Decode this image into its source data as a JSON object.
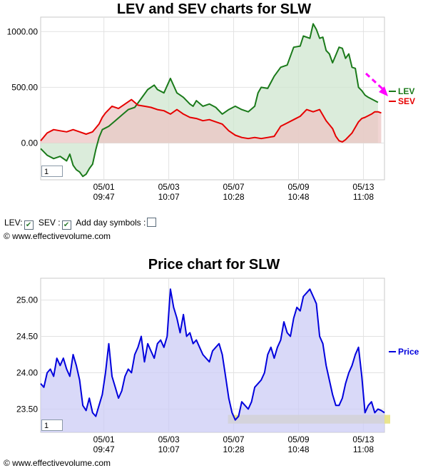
{
  "page": {
    "copyright": "© www.effectivevolume.com"
  },
  "controls": {
    "lev_label": "LEV:",
    "sev_label": "SEV :",
    "day_symbols_label": "Add day symbols :",
    "lev_checked": true,
    "sev_checked": true,
    "day_symbols_checked": false
  },
  "chart_data": [
    {
      "type": "area",
      "title": "LEV and SEV charts for SLW",
      "zoom_value": "1",
      "ylim": [
        -330,
        1130
      ],
      "y_ticks": [
        0,
        500,
        1000
      ],
      "y_tick_labels": [
        "0.00",
        "500.00",
        "1000.00"
      ],
      "x_ticks": [
        {
          "date": "05/01",
          "time": "09:47"
        },
        {
          "date": "05/03",
          "time": "10:07"
        },
        {
          "date": "05/07",
          "time": "10:28"
        },
        {
          "date": "05/09",
          "time": "10:48"
        },
        {
          "date": "05/13",
          "time": "11:08"
        }
      ],
      "x_tick_positions": [
        19.5,
        39.5,
        59.5,
        79.5,
        99.5
      ],
      "x_range": [
        0,
        106
      ],
      "grid": true,
      "legend": "right",
      "series": [
        {
          "name": "LEV",
          "color": "#1a7a1a",
          "fill": "#cfe6cf",
          "points": [
            [
              0,
              -50
            ],
            [
              2,
              -110
            ],
            [
              4,
              -140
            ],
            [
              6,
              -120
            ],
            [
              8,
              -160
            ],
            [
              9,
              -100
            ],
            [
              10,
              -200
            ],
            [
              11,
              -240
            ],
            [
              12,
              -260
            ],
            [
              13,
              -300
            ],
            [
              14,
              -280
            ],
            [
              15,
              -230
            ],
            [
              16,
              -190
            ],
            [
              17,
              -60
            ],
            [
              18,
              50
            ],
            [
              19,
              120
            ],
            [
              21,
              150
            ],
            [
              23,
              200
            ],
            [
              25,
              250
            ],
            [
              27,
              300
            ],
            [
              29,
              320
            ],
            [
              31,
              400
            ],
            [
              33,
              480
            ],
            [
              35,
              520
            ],
            [
              36,
              480
            ],
            [
              38,
              450
            ],
            [
              40,
              580
            ],
            [
              42,
              450
            ],
            [
              44,
              410
            ],
            [
              46,
              350
            ],
            [
              47,
              330
            ],
            [
              48,
              380
            ],
            [
              50,
              330
            ],
            [
              52,
              350
            ],
            [
              54,
              320
            ],
            [
              56,
              260
            ],
            [
              58,
              300
            ],
            [
              60,
              330
            ],
            [
              62,
              300
            ],
            [
              64,
              280
            ],
            [
              66,
              330
            ],
            [
              67,
              450
            ],
            [
              68,
              500
            ],
            [
              70,
              490
            ],
            [
              72,
              600
            ],
            [
              74,
              680
            ],
            [
              76,
              700
            ],
            [
              78,
              860
            ],
            [
              80,
              870
            ],
            [
              81,
              960
            ],
            [
              83,
              940
            ],
            [
              84,
              1070
            ],
            [
              85,
              1020
            ],
            [
              86,
              940
            ],
            [
              87,
              950
            ],
            [
              88,
              830
            ],
            [
              89,
              800
            ],
            [
              90,
              720
            ],
            [
              91,
              790
            ],
            [
              92,
              860
            ],
            [
              93,
              850
            ],
            [
              94,
              760
            ],
            [
              95,
              800
            ],
            [
              96,
              680
            ],
            [
              97,
              670
            ],
            [
              98,
              500
            ],
            [
              99,
              470
            ],
            [
              100,
              430
            ],
            [
              101,
              410
            ],
            [
              103,
              380
            ],
            [
              104,
              365
            ]
          ]
        },
        {
          "name": "SEV",
          "color": "#e60000",
          "fill": "#ecc6c4",
          "points": [
            [
              0,
              20
            ],
            [
              2,
              90
            ],
            [
              4,
              120
            ],
            [
              6,
              110
            ],
            [
              8,
              100
            ],
            [
              10,
              120
            ],
            [
              12,
              100
            ],
            [
              14,
              80
            ],
            [
              16,
              100
            ],
            [
              18,
              170
            ],
            [
              19,
              230
            ],
            [
              20,
              270
            ],
            [
              22,
              330
            ],
            [
              24,
              310
            ],
            [
              26,
              350
            ],
            [
              28,
              390
            ],
            [
              30,
              340
            ],
            [
              32,
              330
            ],
            [
              34,
              320
            ],
            [
              36,
              300
            ],
            [
              38,
              290
            ],
            [
              40,
              260
            ],
            [
              42,
              300
            ],
            [
              44,
              260
            ],
            [
              46,
              230
            ],
            [
              48,
              220
            ],
            [
              50,
              200
            ],
            [
              52,
              210
            ],
            [
              54,
              190
            ],
            [
              56,
              170
            ],
            [
              58,
              110
            ],
            [
              60,
              70
            ],
            [
              62,
              50
            ],
            [
              64,
              40
            ],
            [
              66,
              50
            ],
            [
              68,
              40
            ],
            [
              70,
              50
            ],
            [
              72,
              60
            ],
            [
              74,
              150
            ],
            [
              76,
              180
            ],
            [
              78,
              210
            ],
            [
              80,
              240
            ],
            [
              82,
              300
            ],
            [
              84,
              280
            ],
            [
              86,
              300
            ],
            [
              88,
              200
            ],
            [
              90,
              130
            ],
            [
              91,
              60
            ],
            [
              92,
              20
            ],
            [
              93,
              10
            ],
            [
              94,
              30
            ],
            [
              96,
              90
            ],
            [
              98,
              190
            ],
            [
              99,
              220
            ],
            [
              100,
              230
            ],
            [
              102,
              260
            ],
            [
              103,
              280
            ],
            [
              104,
              280
            ],
            [
              105,
              270
            ]
          ]
        }
      ],
      "arrow_color": "#ff00ff"
    },
    {
      "type": "area",
      "title": "Price chart for SLW",
      "zoom_value": "1",
      "ylim": [
        23.18,
        25.3
      ],
      "y_ticks": [
        23.5,
        24.0,
        24.5,
        25.0
      ],
      "y_tick_labels": [
        "23.50",
        "24.00",
        "24.50",
        "25.00"
      ],
      "x_ticks": [
        {
          "date": "05/01",
          "time": "09:47"
        },
        {
          "date": "05/03",
          "time": "10:07"
        },
        {
          "date": "05/07",
          "time": "10:28"
        },
        {
          "date": "05/09",
          "time": "10:48"
        },
        {
          "date": "05/13",
          "time": "11:08"
        }
      ],
      "x_tick_positions": [
        19.5,
        39.5,
        59.5,
        79.5,
        99.5
      ],
      "x_range": [
        0,
        106
      ],
      "grid": true,
      "legend": "right",
      "highlight_band": [
        23.3,
        23.42
      ],
      "highlight_color": "#e6e07a",
      "series": [
        {
          "name": "Price",
          "color": "#0000dd",
          "fill": "#ccccf5",
          "points": [
            [
              0,
              23.85
            ],
            [
              1,
              23.8
            ],
            [
              2,
              24.0
            ],
            [
              3,
              24.05
            ],
            [
              4,
              23.95
            ],
            [
              5,
              24.2
            ],
            [
              6,
              24.1
            ],
            [
              7,
              24.2
            ],
            [
              8,
              24.05
            ],
            [
              9,
              23.95
            ],
            [
              10,
              24.25
            ],
            [
              11,
              24.1
            ],
            [
              12,
              23.9
            ],
            [
              13,
              23.55
            ],
            [
              14,
              23.48
            ],
            [
              15,
              23.65
            ],
            [
              16,
              23.45
            ],
            [
              17,
              23.4
            ],
            [
              18,
              23.55
            ],
            [
              19,
              23.7
            ],
            [
              20,
              24.0
            ],
            [
              21,
              24.4
            ],
            [
              22,
              23.95
            ],
            [
              23,
              23.8
            ],
            [
              24,
              23.65
            ],
            [
              25,
              23.75
            ],
            [
              26,
              23.95
            ],
            [
              27,
              24.05
            ],
            [
              28,
              24.0
            ],
            [
              29,
              24.25
            ],
            [
              30,
              24.35
            ],
            [
              31,
              24.5
            ],
            [
              32,
              24.15
            ],
            [
              33,
              24.4
            ],
            [
              34,
              24.3
            ],
            [
              35,
              24.2
            ],
            [
              36,
              24.4
            ],
            [
              37,
              24.45
            ],
            [
              38,
              24.35
            ],
            [
              39,
              24.5
            ],
            [
              40,
              25.15
            ],
            [
              41,
              24.9
            ],
            [
              42,
              24.75
            ],
            [
              43,
              24.55
            ],
            [
              44,
              24.8
            ],
            [
              45,
              24.5
            ],
            [
              46,
              24.55
            ],
            [
              47,
              24.4
            ],
            [
              48,
              24.45
            ],
            [
              49,
              24.35
            ],
            [
              50,
              24.25
            ],
            [
              51,
              24.2
            ],
            [
              52,
              24.15
            ],
            [
              53,
              24.3
            ],
            [
              54,
              24.35
            ],
            [
              55,
              24.4
            ],
            [
              56,
              24.25
            ],
            [
              57,
              23.95
            ],
            [
              58,
              23.65
            ],
            [
              59,
              23.45
            ],
            [
              60,
              23.35
            ],
            [
              61,
              23.4
            ],
            [
              62,
              23.6
            ],
            [
              63,
              23.55
            ],
            [
              64,
              23.5
            ],
            [
              65,
              23.6
            ],
            [
              66,
              23.8
            ],
            [
              67,
              23.85
            ],
            [
              68,
              23.9
            ],
            [
              69,
              24.0
            ],
            [
              70,
              24.25
            ],
            [
              71,
              24.35
            ],
            [
              72,
              24.2
            ],
            [
              73,
              24.35
            ],
            [
              74,
              24.45
            ],
            [
              75,
              24.7
            ],
            [
              76,
              24.55
            ],
            [
              77,
              24.5
            ],
            [
              78,
              24.75
            ],
            [
              79,
              24.9
            ],
            [
              80,
              24.85
            ],
            [
              81,
              25.05
            ],
            [
              82,
              25.1
            ],
            [
              83,
              25.15
            ],
            [
              84,
              25.05
            ],
            [
              85,
              24.95
            ],
            [
              86,
              24.5
            ],
            [
              87,
              24.4
            ],
            [
              88,
              24.1
            ],
            [
              89,
              23.9
            ],
            [
              90,
              23.7
            ],
            [
              91,
              23.55
            ],
            [
              92,
              23.55
            ],
            [
              93,
              23.65
            ],
            [
              94,
              23.85
            ],
            [
              95,
              24.0
            ],
            [
              96,
              24.1
            ],
            [
              97,
              24.25
            ],
            [
              98,
              24.35
            ],
            [
              99,
              23.95
            ],
            [
              100,
              23.45
            ],
            [
              101,
              23.55
            ],
            [
              102,
              23.6
            ],
            [
              103,
              23.45
            ],
            [
              104,
              23.5
            ],
            [
              105,
              23.48
            ],
            [
              106,
              23.45
            ]
          ]
        }
      ]
    }
  ]
}
